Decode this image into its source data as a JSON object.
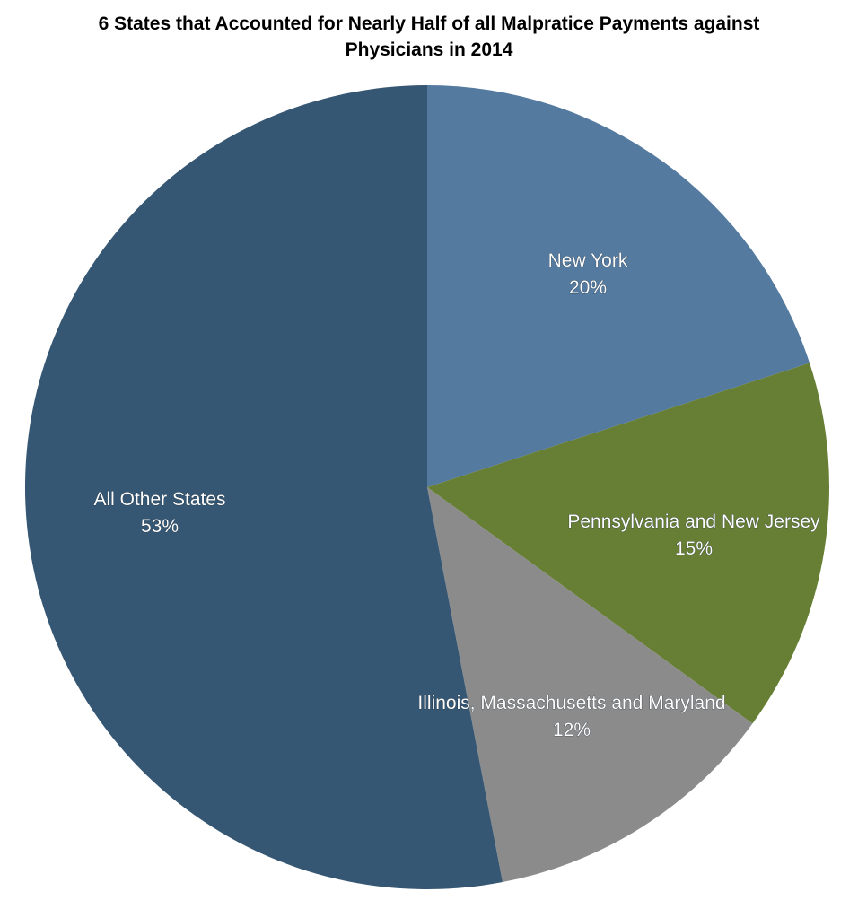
{
  "chart_data": {
    "type": "pie",
    "title": "6 States that Accounted for Nearly Half of all Malpratice Payments  against\nPhysicians in 2014",
    "slices": [
      {
        "label": "New York",
        "value": 20,
        "value_label": "20%",
        "color": "#547a9f"
      },
      {
        "label": "Pennsylvania and New Jersey",
        "value": 15,
        "value_label": "15%",
        "color": "#677f34"
      },
      {
        "label": "Illinois, Massachusetts and Maryland",
        "value": 12,
        "value_label": "12%",
        "color": "#8b8b8b"
      },
      {
        "label": "All Other States",
        "value": 53,
        "value_label": "53%",
        "color": "#365773"
      }
    ],
    "start": "12 o'clock",
    "direction": "clockwise",
    "legend": "none (labels on slices)"
  }
}
